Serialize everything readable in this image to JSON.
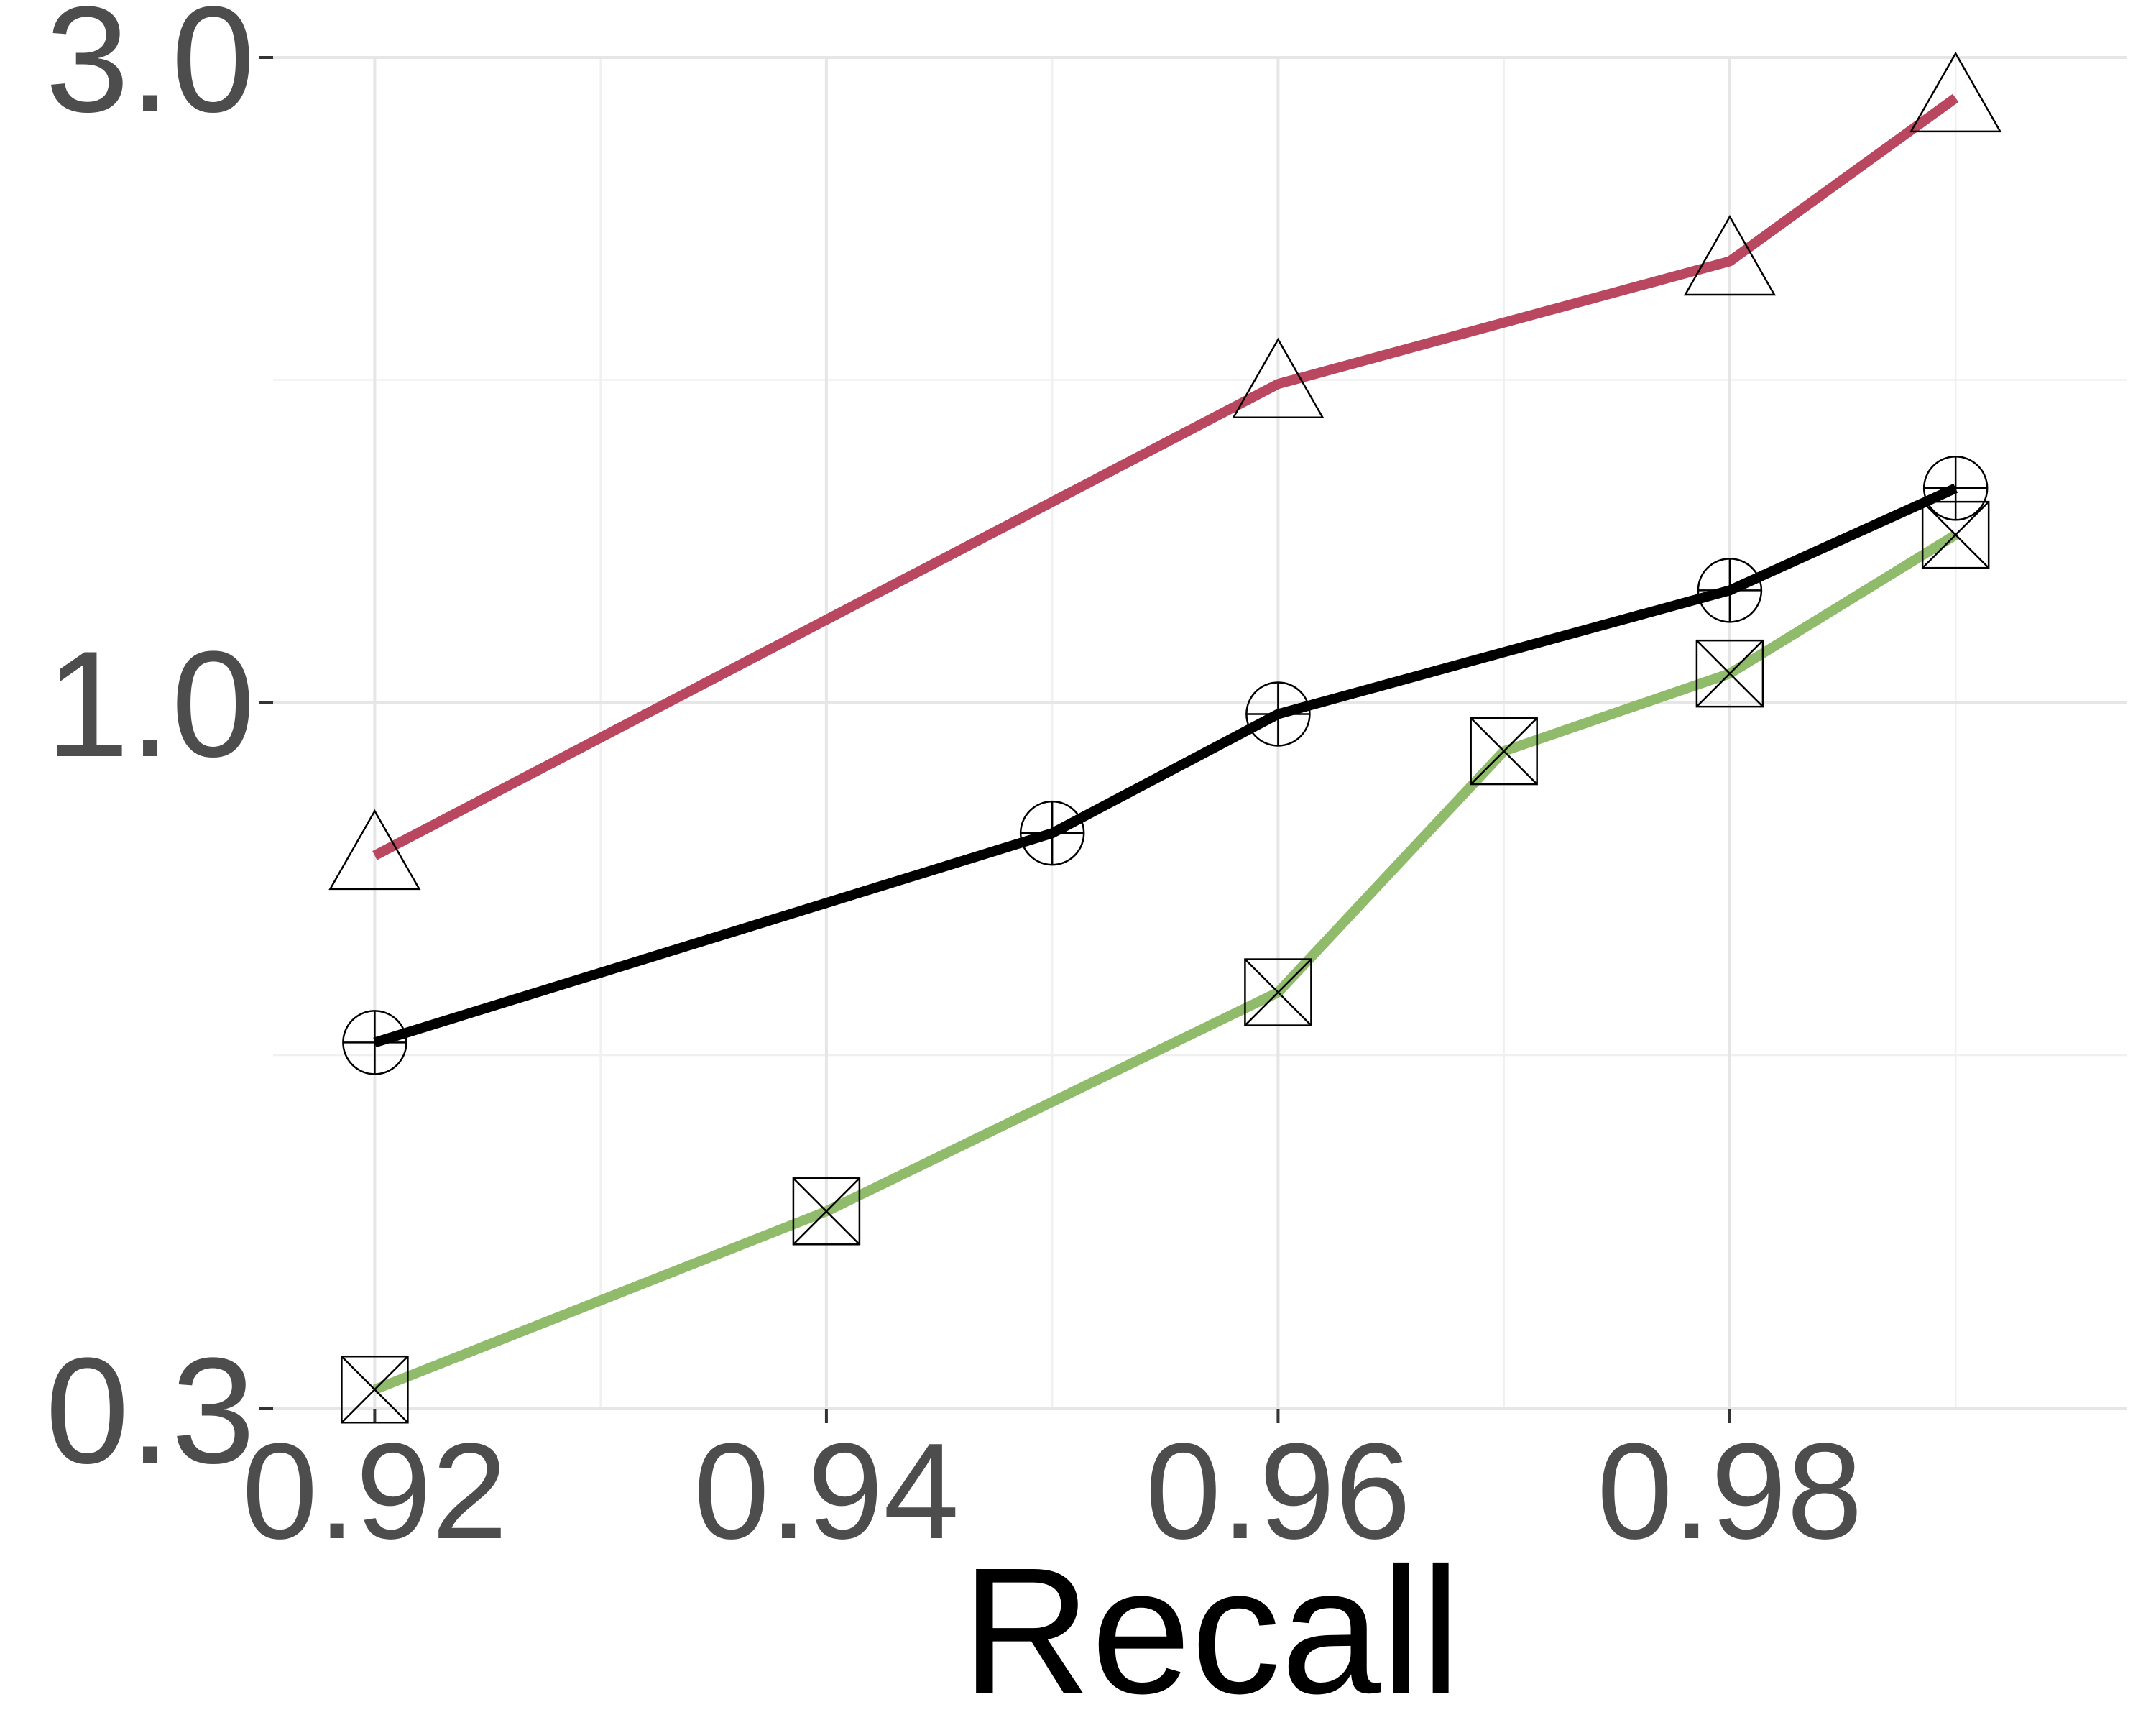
{
  "chart_data": {
    "type": "line",
    "xlabel": "Recall",
    "ylabel": "",
    "y_scale": "log",
    "xlim": [
      0.9155,
      0.9976
    ],
    "ylim": [
      0.3,
      3.0
    ],
    "x_ticks": [
      0.92,
      0.94,
      0.96,
      0.98
    ],
    "x_tick_labels": [
      "0.92",
      "0.94",
      "0.96",
      "0.98"
    ],
    "x_minor_ticks": [
      0.93,
      0.95,
      0.97,
      0.99
    ],
    "y_ticks": [
      0.3,
      1.0,
      3.0
    ],
    "y_tick_labels": [
      "0.3",
      "1.0",
      "3.0"
    ],
    "y_minor_ticks": [
      0.548,
      1.732
    ],
    "grid": true,
    "legend": "none",
    "series": [
      {
        "color": "#b8475f",
        "marker": "triangle",
        "x": [
          0.92,
          0.96,
          0.98,
          0.99
        ],
        "y": [
          0.77,
          1.72,
          2.12,
          2.8
        ]
      },
      {
        "color": "#000000",
        "marker": "circle-plus",
        "x": [
          0.92,
          0.95,
          0.96,
          0.98,
          0.99
        ],
        "y": [
          0.56,
          0.8,
          0.98,
          1.21,
          1.44
        ]
      },
      {
        "color": "#8fbb6b",
        "marker": "square-x",
        "x": [
          0.92,
          0.94,
          0.96,
          0.97,
          0.98,
          0.99
        ],
        "y": [
          0.31,
          0.42,
          0.61,
          0.92,
          1.05,
          1.33
        ]
      }
    ]
  }
}
